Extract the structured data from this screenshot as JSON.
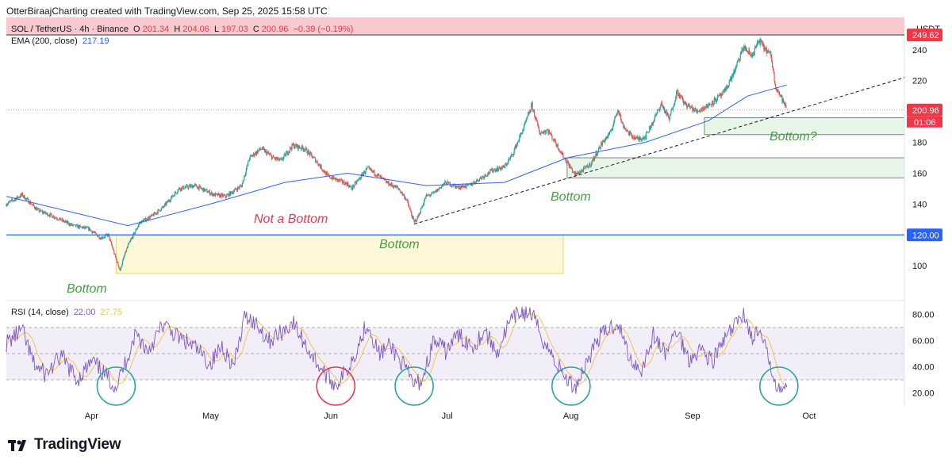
{
  "header": {
    "credit": "OtterBiraajCharting created with TradingView.com, Sep 25, 2025 15:58 UTC"
  },
  "legend": {
    "symbol": "SOL / TetherUS · 4h · Binance",
    "ohlc": [
      {
        "label": "O",
        "value": "201.34"
      },
      {
        "label": "H",
        "value": "204.06"
      },
      {
        "label": "L",
        "value": "197.03"
      },
      {
        "label": "C",
        "value": "200.96"
      }
    ],
    "change": "−0.39 (−0.19%)",
    "ema_label": "EMA (200, close)",
    "ema_value": "217.19",
    "rsi_label": "RSI (14, close)",
    "rsi_value": "22.00",
    "rsi_ma_value": "27.75"
  },
  "axis": {
    "currency": "USDT"
  },
  "badges": {
    "high": "249.62",
    "last": "200.96",
    "countdown": "01:06",
    "level": "120.00"
  },
  "annotations": {
    "bottom_apr": "Bottom",
    "not_bottom": "Not a Bottom",
    "bottom_jun": "Bottom",
    "bottom_aug": "Bottom",
    "bottom_now": "Bottom?"
  },
  "logo": {
    "text": "TradingView"
  },
  "colors": {
    "up": "#26a69a",
    "down": "#ef5350",
    "ema": "#2962ff",
    "rsi": "#7e57c2",
    "rsi_ma": "#f5c13c",
    "zone_red": "#f7c9cf",
    "zone_green": "#e8f5e9",
    "zone_yellow": "#fff8d6",
    "circle_green": "#26a69a",
    "circle_red": "#e53950"
  },
  "chart_data": [
    {
      "type": "candlestick",
      "title": "SOL / TetherUS · 4h · Binance",
      "y_label": "USDT",
      "ylim": [
        78,
        262
      ],
      "y_ticks": [
        100,
        120,
        140,
        160,
        180,
        200,
        220,
        240
      ],
      "x_ticks": [
        "Apr",
        "May",
        "Jun",
        "Jul",
        "Aug",
        "Sep",
        "Oct"
      ],
      "x_tick_dates": [
        "2025-04-01",
        "2025-05-01",
        "2025-06-01",
        "2025-07-01",
        "2025-08-01",
        "2025-09-01",
        "2025-10-01"
      ],
      "xlim": [
        "2025-03-10",
        "2025-10-25"
      ],
      "price_path": [
        [
          "2025-03-10",
          140
        ],
        [
          "2025-03-14",
          146
        ],
        [
          "2025-03-18",
          136
        ],
        [
          "2025-03-22",
          132
        ],
        [
          "2025-03-27",
          126
        ],
        [
          "2025-03-31",
          124
        ],
        [
          "2025-04-03",
          118
        ],
        [
          "2025-04-05",
          120
        ],
        [
          "2025-04-07",
          104
        ],
        [
          "2025-04-08",
          97
        ],
        [
          "2025-04-09",
          106
        ],
        [
          "2025-04-10",
          113
        ],
        [
          "2025-04-13",
          128
        ],
        [
          "2025-04-16",
          132
        ],
        [
          "2025-04-19",
          138
        ],
        [
          "2025-04-23",
          150
        ],
        [
          "2025-04-27",
          152
        ],
        [
          "2025-05-02",
          146
        ],
        [
          "2025-05-05",
          145
        ],
        [
          "2025-05-09",
          152
        ],
        [
          "2025-05-11",
          170
        ],
        [
          "2025-05-14",
          176
        ],
        [
          "2025-05-17",
          170
        ],
        [
          "2025-05-19",
          168
        ],
        [
          "2025-05-22",
          178
        ],
        [
          "2025-05-25",
          176
        ],
        [
          "2025-05-28",
          168
        ],
        [
          "2025-05-31",
          158
        ],
        [
          "2025-06-02",
          156
        ],
        [
          "2025-06-05",
          153
        ],
        [
          "2025-06-06",
          150
        ],
        [
          "2025-06-10",
          163
        ],
        [
          "2025-06-12",
          160
        ],
        [
          "2025-06-15",
          154
        ],
        [
          "2025-06-18",
          150
        ],
        [
          "2025-06-20",
          143
        ],
        [
          "2025-06-22",
          128
        ],
        [
          "2025-06-23",
          132
        ],
        [
          "2025-06-25",
          145
        ],
        [
          "2025-06-27",
          147
        ],
        [
          "2025-06-30",
          154
        ],
        [
          "2025-07-03",
          151
        ],
        [
          "2025-07-06",
          152
        ],
        [
          "2025-07-09",
          157
        ],
        [
          "2025-07-12",
          162
        ],
        [
          "2025-07-15",
          164
        ],
        [
          "2025-07-17",
          172
        ],
        [
          "2025-07-20",
          190
        ],
        [
          "2025-07-22",
          204
        ],
        [
          "2025-07-24",
          186
        ],
        [
          "2025-07-26",
          188
        ],
        [
          "2025-07-28",
          180
        ],
        [
          "2025-07-30",
          171
        ],
        [
          "2025-08-02",
          159
        ],
        [
          "2025-08-04",
          162
        ],
        [
          "2025-08-06",
          166
        ],
        [
          "2025-08-09",
          180
        ],
        [
          "2025-08-11",
          186
        ],
        [
          "2025-08-13",
          202
        ],
        [
          "2025-08-14",
          192
        ],
        [
          "2025-08-16",
          185
        ],
        [
          "2025-08-18",
          182
        ],
        [
          "2025-08-20",
          184
        ],
        [
          "2025-08-22",
          194
        ],
        [
          "2025-08-24",
          205
        ],
        [
          "2025-08-26",
          195
        ],
        [
          "2025-08-28",
          213
        ],
        [
          "2025-08-30",
          205
        ],
        [
          "2025-09-02",
          200
        ],
        [
          "2025-09-05",
          204
        ],
        [
          "2025-09-09",
          212
        ],
        [
          "2025-09-12",
          228
        ],
        [
          "2025-09-14",
          242
        ],
        [
          "2025-09-16",
          236
        ],
        [
          "2025-09-18",
          246
        ],
        [
          "2025-09-19",
          242
        ],
        [
          "2025-09-21",
          236
        ],
        [
          "2025-09-22",
          218
        ],
        [
          "2025-09-23",
          212
        ],
        [
          "2025-09-24",
          207
        ],
        [
          "2025-09-25",
          200.96
        ]
      ],
      "ema200_path": [
        [
          "2025-03-10",
          145
        ],
        [
          "2025-04-10",
          126
        ],
        [
          "2025-05-01",
          140
        ],
        [
          "2025-05-20",
          154
        ],
        [
          "2025-06-05",
          160
        ],
        [
          "2025-06-25",
          152
        ],
        [
          "2025-07-15",
          154
        ],
        [
          "2025-07-31",
          170
        ],
        [
          "2025-08-20",
          180
        ],
        [
          "2025-09-05",
          194
        ],
        [
          "2025-09-15",
          210
        ],
        [
          "2025-09-25",
          217.19
        ]
      ],
      "trendline": {
        "from": [
          "2025-06-22",
          127
        ],
        "to": [
          "2025-10-25",
          222
        ],
        "style": "dashed"
      },
      "levels": [
        {
          "value": 249.62,
          "label": "249.62"
        },
        {
          "value": 200.96,
          "label": "200.96",
          "style": "dotted"
        },
        {
          "value": 120,
          "label": "120.00"
        }
      ],
      "zones": [
        {
          "kind": "resistance",
          "from_date": "2025-03-10",
          "to_date": "2025-10-25",
          "low": 249.62,
          "high": 262
        },
        {
          "kind": "support",
          "from_date": "2025-09-04",
          "to_date": "2025-10-25",
          "low": 185,
          "high": 196
        },
        {
          "kind": "support",
          "from_date": "2025-07-31",
          "to_date": "2025-10-25",
          "low": 157,
          "high": 170
        },
        {
          "kind": "support",
          "from_date": "2025-04-07",
          "to_date": "2025-07-30",
          "low": 95,
          "high": 120
        }
      ],
      "annotations": [
        {
          "text": "Bottom",
          "date": "2025-04-07",
          "value": 92
        },
        {
          "text": "Not a Bottom",
          "date": "2025-05-31",
          "value": 138
        },
        {
          "text": "Bottom",
          "date": "2025-06-22",
          "value": 117
        },
        {
          "text": "Bottom",
          "date": "2025-08-01",
          "value": 152
        },
        {
          "text": "Bottom?",
          "date": "2025-09-11",
          "value": 191
        }
      ]
    },
    {
      "type": "line",
      "title": "RSI (14, close)",
      "ylim": [
        10,
        90
      ],
      "y_ticks": [
        20,
        40,
        60,
        80
      ],
      "bands": [
        30,
        50,
        70
      ],
      "series": [
        {
          "name": "RSI (14, close)",
          "last_value": 22.0
        },
        {
          "name": "MA",
          "last_value": 27.75
        }
      ],
      "rsi_path": [
        [
          "2025-03-10",
          58
        ],
        [
          "2025-03-14",
          68
        ],
        [
          "2025-03-17",
          42
        ],
        [
          "2025-03-20",
          34
        ],
        [
          "2025-03-24",
          48
        ],
        [
          "2025-03-28",
          30
        ],
        [
          "2025-04-01",
          44
        ],
        [
          "2025-04-04",
          34
        ],
        [
          "2025-04-07",
          25
        ],
        [
          "2025-04-09",
          40
        ],
        [
          "2025-04-12",
          66
        ],
        [
          "2025-04-15",
          52
        ],
        [
          "2025-04-19",
          72
        ],
        [
          "2025-04-23",
          62
        ],
        [
          "2025-04-27",
          55
        ],
        [
          "2025-05-01",
          42
        ],
        [
          "2025-05-04",
          56
        ],
        [
          "2025-05-07",
          40
        ],
        [
          "2025-05-10",
          80
        ],
        [
          "2025-05-13",
          72
        ],
        [
          "2025-05-16",
          60
        ],
        [
          "2025-05-19",
          66
        ],
        [
          "2025-05-22",
          74
        ],
        [
          "2025-05-25",
          58
        ],
        [
          "2025-05-28",
          44
        ],
        [
          "2025-05-31",
          32
        ],
        [
          "2025-06-02",
          26
        ],
        [
          "2025-06-05",
          38
        ],
        [
          "2025-06-08",
          58
        ],
        [
          "2025-06-10",
          74
        ],
        [
          "2025-06-13",
          50
        ],
        [
          "2025-06-16",
          56
        ],
        [
          "2025-06-19",
          42
        ],
        [
          "2025-06-22",
          26
        ],
        [
          "2025-06-24",
          30
        ],
        [
          "2025-06-27",
          60
        ],
        [
          "2025-06-30",
          52
        ],
        [
          "2025-07-03",
          64
        ],
        [
          "2025-07-07",
          56
        ],
        [
          "2025-07-10",
          68
        ],
        [
          "2025-07-13",
          50
        ],
        [
          "2025-07-16",
          72
        ],
        [
          "2025-07-19",
          82
        ],
        [
          "2025-07-22",
          80
        ],
        [
          "2025-07-25",
          60
        ],
        [
          "2025-07-28",
          44
        ],
        [
          "2025-07-31",
          30
        ],
        [
          "2025-08-02",
          24
        ],
        [
          "2025-08-05",
          44
        ],
        [
          "2025-08-08",
          62
        ],
        [
          "2025-08-11",
          70
        ],
        [
          "2025-08-13",
          74
        ],
        [
          "2025-08-16",
          46
        ],
        [
          "2025-08-19",
          38
        ],
        [
          "2025-08-22",
          64
        ],
        [
          "2025-08-25",
          50
        ],
        [
          "2025-08-28",
          68
        ],
        [
          "2025-08-31",
          46
        ],
        [
          "2025-09-03",
          54
        ],
        [
          "2025-09-06",
          44
        ],
        [
          "2025-09-09",
          60
        ],
        [
          "2025-09-12",
          72
        ],
        [
          "2025-09-14",
          82
        ],
        [
          "2025-09-16",
          62
        ],
        [
          "2025-09-18",
          66
        ],
        [
          "2025-09-20",
          50
        ],
        [
          "2025-09-22",
          30
        ],
        [
          "2025-09-24",
          22
        ],
        [
          "2025-09-25",
          22
        ]
      ],
      "circles": [
        {
          "date": "2025-04-07",
          "kind": "bottom"
        },
        {
          "date": "2025-06-02",
          "kind": "not-bottom"
        },
        {
          "date": "2025-06-22",
          "kind": "bottom"
        },
        {
          "date": "2025-08-01",
          "kind": "bottom"
        },
        {
          "date": "2025-09-23",
          "kind": "bottom"
        }
      ]
    }
  ]
}
